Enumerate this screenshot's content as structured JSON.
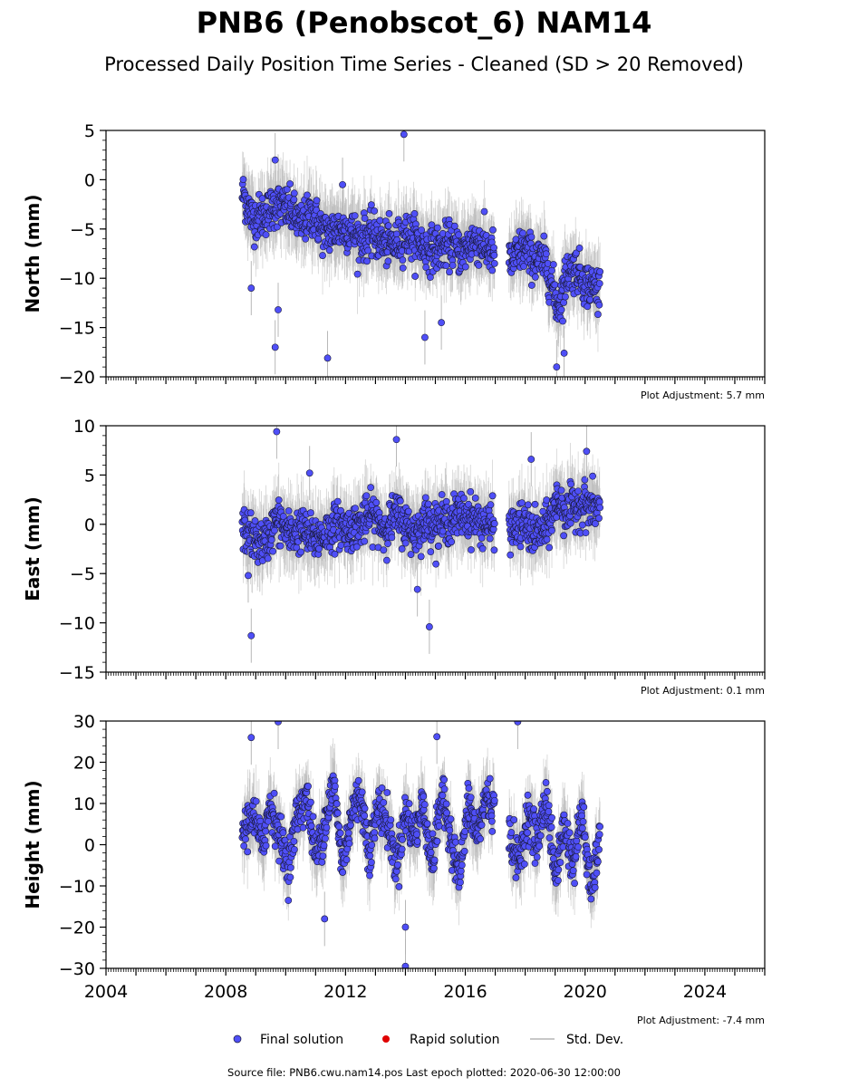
{
  "page": {
    "title": "PNB6 (Penobscot_6) NAM14",
    "subtitle": "Processed Daily Position Time Series - Cleaned (SD > 20 Removed)",
    "source": "Source file: PNB6.cwu.nam14.pos  Last epoch plotted: 2020-06-30 12:00:00"
  },
  "legend": {
    "final_label": "Final solution",
    "rapid_label": "Rapid solution",
    "std_label": "Std. Dev."
  },
  "colors": {
    "final": "#4f4ff7",
    "final_edge": "#1a1a3a",
    "rapid": "#e00000",
    "std": "#b0b0b0"
  },
  "chart_data": [
    {
      "type": "scatter",
      "ylabel": "North (mm)",
      "ylim": [
        -20,
        5
      ],
      "yticks": [
        5,
        0,
        -5,
        -10,
        -15,
        -20
      ],
      "xlim": [
        2004,
        2026
      ],
      "adjustment": "Plot Adjustment: 5.7 mm",
      "series": [
        {
          "name": "Final solution",
          "x": [
            2008.6,
            2008.9,
            2009.3,
            2009.7,
            2010.1,
            2010.5,
            2010.9,
            2011.3,
            2011.7,
            2012.1,
            2012.5,
            2012.9,
            2013.3,
            2013.7,
            2014.0,
            2014.3,
            2014.7,
            2015.1,
            2015.5,
            2015.9,
            2016.3,
            2016.7,
            2017.5,
            2017.9,
            2018.3,
            2018.7,
            2019.1,
            2019.4,
            2019.7,
            2020.0,
            2020.4
          ],
          "y": [
            -1.5,
            -4.0,
            -3.5,
            -2.5,
            -3.0,
            -4.5,
            -3.5,
            -5.5,
            -5.0,
            -5.0,
            -6.0,
            -5.5,
            -6.5,
            -6.5,
            -5.5,
            -6.0,
            -7.0,
            -7.0,
            -6.5,
            -7.5,
            -6.0,
            -7.0,
            -8.5,
            -7.0,
            -8.0,
            -8.5,
            -13.0,
            -9.5,
            -9.0,
            -10.5,
            -11.0
          ]
        }
      ],
      "outliers": [
        [
          2008.85,
          -11
        ],
        [
          2009.65,
          -17
        ],
        [
          2009.75,
          -13.2
        ],
        [
          2011.4,
          -18.1
        ],
        [
          2013.95,
          4.6
        ],
        [
          2014.65,
          -16
        ],
        [
          2015.2,
          -14.5
        ],
        [
          2019.05,
          -19
        ],
        [
          2019.3,
          -17.6
        ],
        [
          2009.65,
          2.0
        ],
        [
          2011.9,
          -0.5
        ]
      ]
    },
    {
      "type": "scatter",
      "ylabel": "East (mm)",
      "ylim": [
        -15,
        10
      ],
      "yticks": [
        10,
        5,
        0,
        -5,
        -10,
        -15
      ],
      "xlim": [
        2004,
        2026
      ],
      "adjustment": "Plot Adjustment: 0.1 mm",
      "series": [
        {
          "name": "Final solution",
          "x": [
            2008.6,
            2008.9,
            2009.3,
            2009.7,
            2010.1,
            2010.5,
            2010.9,
            2011.3,
            2011.7,
            2012.1,
            2012.5,
            2012.9,
            2013.3,
            2013.7,
            2014.0,
            2014.3,
            2014.7,
            2015.1,
            2015.5,
            2015.9,
            2016.3,
            2016.7,
            2017.5,
            2017.9,
            2018.3,
            2018.7,
            2019.1,
            2019.4,
            2019.7,
            2020.0,
            2020.4
          ],
          "y": [
            -0.5,
            -1.5,
            -2.0,
            0.5,
            -1.0,
            -0.5,
            -1.5,
            -1.0,
            0.0,
            -0.5,
            0.0,
            1.0,
            -0.5,
            1.0,
            0.0,
            -1.0,
            0.5,
            0.0,
            0.5,
            1.0,
            0.5,
            0.0,
            -0.5,
            0.0,
            -1.0,
            -0.5,
            2.5,
            1.0,
            2.0,
            2.0,
            1.5
          ]
        }
      ],
      "outliers": [
        [
          2008.85,
          -11.3
        ],
        [
          2008.75,
          -5.2
        ],
        [
          2009.7,
          9.4
        ],
        [
          2013.7,
          8.6
        ],
        [
          2014.4,
          -6.6
        ],
        [
          2014.8,
          -10.4
        ],
        [
          2018.2,
          6.6
        ],
        [
          2020.05,
          7.4
        ],
        [
          2010.8,
          5.2
        ]
      ]
    },
    {
      "type": "scatter",
      "ylabel": "Height (mm)",
      "ylim": [
        -30,
        30
      ],
      "yticks": [
        30,
        20,
        10,
        0,
        -10,
        -20,
        -30
      ],
      "xlim": [
        2004,
        2026
      ],
      "xticks": [
        2004,
        2008,
        2012,
        2016,
        2020,
        2024
      ],
      "adjustment": "Plot Adjustment: -7.4 mm",
      "series": [
        {
          "name": "Final solution",
          "x": [
            2008.6,
            2008.9,
            2009.2,
            2009.5,
            2009.8,
            2010.1,
            2010.4,
            2010.7,
            2011.0,
            2011.3,
            2011.6,
            2011.9,
            2012.2,
            2012.5,
            2012.8,
            2013.1,
            2013.4,
            2013.7,
            2014.0,
            2014.3,
            2014.6,
            2014.9,
            2015.2,
            2015.5,
            2015.8,
            2016.1,
            2016.4,
            2016.7,
            2017.5,
            2017.8,
            2018.1,
            2018.4,
            2018.7,
            2019.0,
            2019.3,
            2019.6,
            2019.9,
            2020.2,
            2020.45
          ],
          "y": [
            3,
            8,
            0,
            10,
            2,
            -5,
            8,
            12,
            -3,
            5,
            15,
            -5,
            8,
            12,
            -2,
            10,
            5,
            -5,
            8,
            2,
            10,
            -5,
            12,
            3,
            -8,
            10,
            2,
            12,
            2,
            -5,
            8,
            0,
            12,
            -8,
            5,
            -5,
            8,
            -12,
            0
          ]
        }
      ],
      "outliers": [
        [
          2009.75,
          29.8
        ],
        [
          2017.75,
          29.8
        ],
        [
          2014.0,
          -29.5
        ],
        [
          2014.0,
          -20
        ],
        [
          2011.3,
          -18
        ],
        [
          2008.85,
          26
        ],
        [
          2015.05,
          26.2
        ]
      ]
    }
  ]
}
